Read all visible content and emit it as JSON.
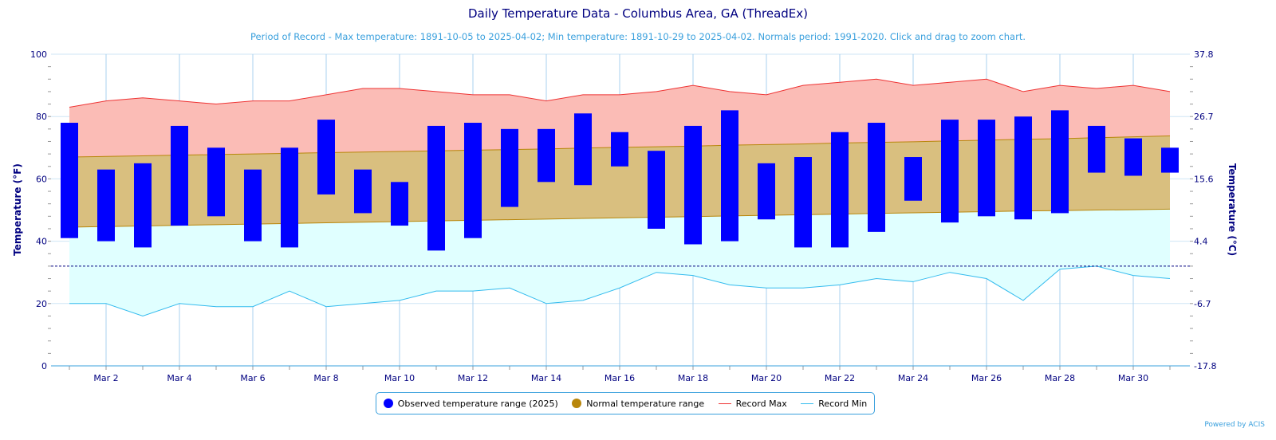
{
  "title": "Daily Temperature Data - Columbus Area, GA (ThreadEx)",
  "subtitle": "Period of Record - Max temperature: 1891-10-05 to 2025-04-02; Min temperature: 1891-10-29 to 2025-04-02. Normals period: 1991-2020. Click and drag to zoom chart.",
  "credit": "Powered by ACIS",
  "legend": {
    "observed": "Observed temperature range (2025)",
    "normal": "Normal temperature range",
    "record_max": "Record Max",
    "record_min": "Record Min"
  },
  "colors": {
    "observed": "#0000ff",
    "normal_fill": "#d9bf7f",
    "normal_line": "#b8860b",
    "record_max_fill": "#fbbcb6",
    "record_max_line": "#ee3333",
    "record_min_fill": "#e0ffff",
    "record_min_line": "#33bbee",
    "freeze": "#000080"
  },
  "chart_data": {
    "type": "bar",
    "title": "Daily Temperature Data - Columbus Area, GA (ThreadEx)",
    "ylabel": "Temperature (°F)",
    "ylabel_right": "Temperature (°C)",
    "ylim": [
      0,
      100
    ],
    "yticks": [
      "0",
      "20",
      "40",
      "60",
      "80",
      "100"
    ],
    "yticks_right": [
      "-17.8",
      "-6.7",
      "4.4",
      "15.6",
      "26.7",
      "37.8"
    ],
    "freezing_line": 32,
    "days": [
      1,
      2,
      3,
      4,
      5,
      6,
      7,
      8,
      9,
      10,
      11,
      12,
      13,
      14,
      15,
      16,
      17,
      18,
      19,
      20,
      21,
      22,
      23,
      24,
      25,
      26,
      27,
      28,
      29,
      30,
      31
    ],
    "xtick_labels": [
      "Mar 2",
      "Mar 4",
      "Mar 6",
      "Mar 8",
      "Mar 10",
      "Mar 12",
      "Mar 14",
      "Mar 16",
      "Mar 18",
      "Mar 20",
      "Mar 22",
      "Mar 24",
      "Mar 26",
      "Mar 28",
      "Mar 30"
    ],
    "observed_max": [
      78,
      63,
      65,
      77,
      70,
      63,
      70,
      79,
      63,
      59,
      77,
      78,
      76,
      76,
      81,
      75,
      69,
      77,
      82,
      65,
      67,
      75,
      78,
      67,
      79,
      79,
      80,
      82,
      77,
      73,
      70
    ],
    "observed_min": [
      41,
      40,
      38,
      45,
      48,
      40,
      38,
      55,
      49,
      45,
      37,
      41,
      51,
      59,
      58,
      64,
      44,
      39,
      40,
      47,
      38,
      38,
      43,
      53,
      46,
      48,
      47,
      49,
      62,
      61,
      62
    ],
    "normal_max": [
      67,
      67.2,
      67.4,
      67.6,
      67.8,
      68,
      68.2,
      68.4,
      68.6,
      68.8,
      69,
      69.2,
      69.4,
      69.6,
      69.9,
      70.1,
      70.3,
      70.5,
      70.8,
      71,
      71.2,
      71.5,
      71.7,
      71.9,
      72.2,
      72.4,
      72.7,
      72.9,
      73.2,
      73.5,
      73.8
    ],
    "normal_min": [
      44.5,
      44.7,
      44.9,
      45.1,
      45.3,
      45.5,
      45.7,
      45.9,
      46.1,
      46.3,
      46.5,
      46.7,
      46.9,
      47.1,
      47.3,
      47.5,
      47.7,
      47.9,
      48.1,
      48.3,
      48.5,
      48.7,
      48.9,
      49.1,
      49.3,
      49.5,
      49.7,
      49.8,
      50,
      50.1,
      50.3
    ],
    "record_max": [
      83,
      85,
      86,
      85,
      84,
      85,
      85,
      87,
      89,
      89,
      88,
      87,
      87,
      85,
      87,
      87,
      88,
      90,
      88,
      87,
      90,
      91,
      92,
      90,
      91,
      92,
      88,
      90,
      89,
      90,
      88
    ],
    "record_min": [
      20,
      20,
      16,
      20,
      19,
      19,
      24,
      19,
      20,
      21,
      24,
      24,
      25,
      20,
      21,
      25,
      30,
      29,
      26,
      25,
      25,
      26,
      28,
      27,
      30,
      28,
      21,
      31,
      32,
      29,
      28
    ]
  }
}
